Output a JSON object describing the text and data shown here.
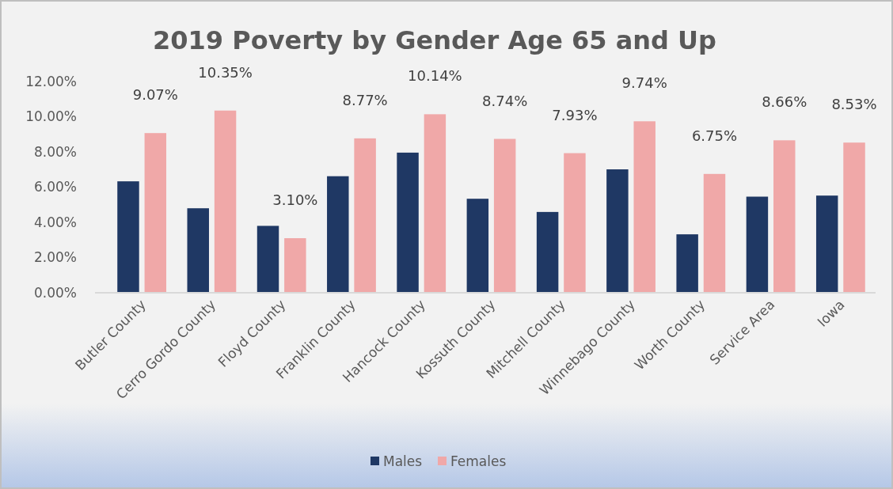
{
  "chart_data": {
    "type": "bar",
    "title": "2019 Poverty by Gender Age 65 and Up",
    "categories": [
      "Butler County",
      "Cerro Gordo County",
      "Floyd County",
      "Franklin County",
      "Hancock County",
      "Kossuth County",
      "Mitchell County",
      "Winnebago County",
      "Worth County",
      "Service Area",
      "Iowa"
    ],
    "series": [
      {
        "name": "Males",
        "color": "#1f3864",
        "values": [
          6.33,
          4.8,
          3.8,
          6.62,
          7.96,
          5.34,
          4.59,
          7.01,
          3.32,
          5.46,
          5.52
        ]
      },
      {
        "name": "Females",
        "color": "#f0a8a8",
        "values": [
          9.07,
          10.35,
          3.1,
          8.77,
          10.14,
          8.74,
          7.93,
          9.74,
          6.75,
          8.66,
          8.53
        ],
        "value_labels": [
          "9.07%",
          "10.35%",
          "3.10%",
          "8.77%",
          "10.14%",
          "8.74%",
          "7.93%",
          "9.74%",
          "6.75%",
          "8.66%",
          "8.53%"
        ]
      }
    ],
    "ylim": [
      0,
      12
    ],
    "yticks": [
      {
        "value": 0,
        "label": "0.00%"
      },
      {
        "value": 2,
        "label": "2.00%"
      },
      {
        "value": 4,
        "label": "4.00%"
      },
      {
        "value": 6,
        "label": "6.00%"
      },
      {
        "value": 8,
        "label": "8.00%"
      },
      {
        "value": 10,
        "label": "10.00%"
      },
      {
        "value": 12,
        "label": "12.00%"
      }
    ],
    "grid": false,
    "legend": "bottom"
  }
}
